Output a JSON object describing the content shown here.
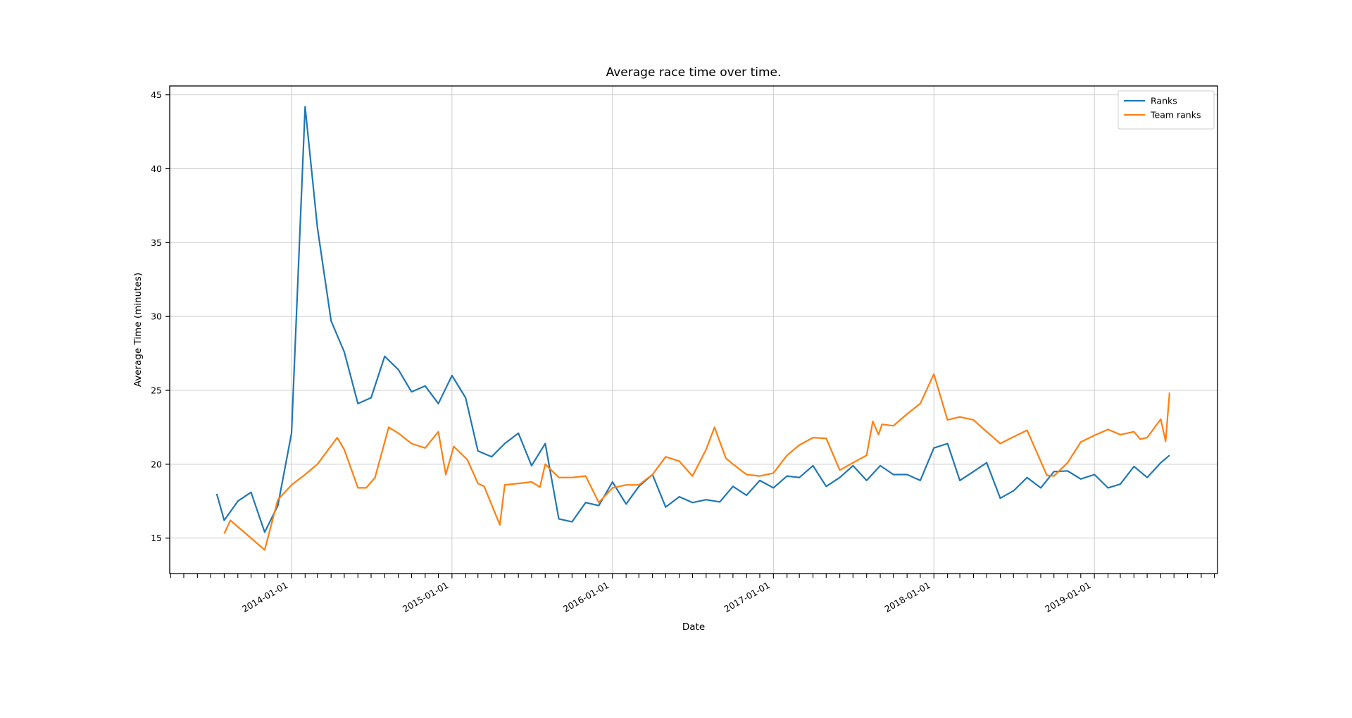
{
  "title": "Average race time over time.",
  "axes": {
    "xlabel": "Date",
    "ylabel": "Average Time (minutes)",
    "x_tick_labels": [
      "2014-01-01",
      "2015-01-01",
      "2016-01-01",
      "2017-01-01",
      "2018-01-01",
      "2019-01-01"
    ],
    "y_tick_labels": [
      15,
      20,
      25,
      30,
      35,
      40,
      45
    ],
    "xlim": [
      "2013-03-30",
      "2019-10-08"
    ],
    "ylim": [
      12.6,
      45.6
    ],
    "grid": true
  },
  "legend": {
    "position": "upper-right",
    "entries": [
      {
        "label": "Ranks",
        "color": "#1f77b4"
      },
      {
        "label": "Team ranks",
        "color": "#ff7f0e"
      }
    ]
  },
  "colors": {
    "grid": "#cccccc",
    "spine": "#000000",
    "tick_text": "#000000"
  },
  "chart_data": {
    "type": "line",
    "title": "Average race time over time.",
    "xlabel": "Date",
    "ylabel": "Average Time (minutes)",
    "ylim": [
      12.6,
      45.6
    ],
    "xlim": [
      "2013-03-30",
      "2019-10-08"
    ],
    "legend_position": "upper-right",
    "grid": true,
    "series": [
      {
        "name": "Ranks",
        "color": "#1f77b4",
        "points": [
          [
            "2013-07-15",
            18.0
          ],
          [
            "2013-08-01",
            16.2
          ],
          [
            "2013-09-01",
            17.5
          ],
          [
            "2013-10-01",
            18.1
          ],
          [
            "2013-11-01",
            15.4
          ],
          [
            "2013-12-01",
            17.2
          ],
          [
            "2014-01-01",
            22.1
          ],
          [
            "2014-02-01",
            44.2
          ],
          [
            "2014-03-01",
            36.0
          ],
          [
            "2014-04-01",
            29.7
          ],
          [
            "2014-05-01",
            27.6
          ],
          [
            "2014-06-01",
            24.1
          ],
          [
            "2014-07-01",
            24.5
          ],
          [
            "2014-08-01",
            27.3
          ],
          [
            "2014-09-01",
            26.4
          ],
          [
            "2014-10-01",
            24.9
          ],
          [
            "2014-11-01",
            25.3
          ],
          [
            "2014-12-01",
            24.1
          ],
          [
            "2015-01-01",
            26.0
          ],
          [
            "2015-02-01",
            24.5
          ],
          [
            "2015-03-01",
            20.9
          ],
          [
            "2015-04-01",
            20.5
          ],
          [
            "2015-05-01",
            21.4
          ],
          [
            "2015-06-01",
            22.1
          ],
          [
            "2015-07-01",
            19.9
          ],
          [
            "2015-08-01",
            21.4
          ],
          [
            "2015-09-01",
            16.3
          ],
          [
            "2015-10-01",
            16.1
          ],
          [
            "2015-11-01",
            17.4
          ],
          [
            "2015-12-01",
            17.2
          ],
          [
            "2016-01-01",
            18.8
          ],
          [
            "2016-02-01",
            17.3
          ],
          [
            "2016-03-01",
            18.5
          ],
          [
            "2016-04-01",
            19.3
          ],
          [
            "2016-05-01",
            17.1
          ],
          [
            "2016-06-01",
            17.8
          ],
          [
            "2016-07-01",
            17.4
          ],
          [
            "2016-08-01",
            17.6
          ],
          [
            "2016-09-01",
            17.45
          ],
          [
            "2016-10-01",
            18.5
          ],
          [
            "2016-11-01",
            17.9
          ],
          [
            "2016-12-01",
            18.9
          ],
          [
            "2017-01-01",
            18.4
          ],
          [
            "2017-02-01",
            19.2
          ],
          [
            "2017-03-01",
            19.1
          ],
          [
            "2017-04-01",
            19.9
          ],
          [
            "2017-05-01",
            18.5
          ],
          [
            "2017-06-01",
            19.1
          ],
          [
            "2017-07-01",
            19.9
          ],
          [
            "2017-08-01",
            18.9
          ],
          [
            "2017-09-01",
            19.9
          ],
          [
            "2017-10-01",
            19.3
          ],
          [
            "2017-11-01",
            19.3
          ],
          [
            "2017-12-01",
            18.9
          ],
          [
            "2018-01-01",
            21.1
          ],
          [
            "2018-02-01",
            21.4
          ],
          [
            "2018-03-01",
            18.9
          ],
          [
            "2018-04-01",
            19.5
          ],
          [
            "2018-05-01",
            20.1
          ],
          [
            "2018-06-01",
            17.7
          ],
          [
            "2018-07-01",
            18.2
          ],
          [
            "2018-08-01",
            19.1
          ],
          [
            "2018-09-01",
            18.4
          ],
          [
            "2018-10-01",
            19.5
          ],
          [
            "2018-11-01",
            19.55
          ],
          [
            "2018-12-01",
            19.0
          ],
          [
            "2019-01-01",
            19.3
          ],
          [
            "2019-02-01",
            18.4
          ],
          [
            "2019-03-01",
            18.65
          ],
          [
            "2019-04-01",
            19.85
          ],
          [
            "2019-05-01",
            19.1
          ],
          [
            "2019-06-01",
            20.1
          ],
          [
            "2019-06-21",
            20.6
          ]
        ]
      },
      {
        "name": "Team ranks",
        "color": "#ff7f0e",
        "points": [
          [
            "2013-08-01",
            15.3
          ],
          [
            "2013-08-15",
            16.2
          ],
          [
            "2013-11-01",
            14.2
          ],
          [
            "2013-12-01",
            17.6
          ],
          [
            "2014-01-01",
            18.6
          ],
          [
            "2014-02-01",
            19.3
          ],
          [
            "2014-03-01",
            20.0
          ],
          [
            "2014-04-15",
            21.8
          ],
          [
            "2014-05-01",
            21.0
          ],
          [
            "2014-06-01",
            18.4
          ],
          [
            "2014-06-20",
            18.4
          ],
          [
            "2014-07-10",
            19.1
          ],
          [
            "2014-08-10",
            22.5
          ],
          [
            "2014-09-01",
            22.1
          ],
          [
            "2014-10-01",
            21.4
          ],
          [
            "2014-11-01",
            21.1
          ],
          [
            "2014-12-01",
            22.2
          ],
          [
            "2014-12-18",
            19.3
          ],
          [
            "2015-01-05",
            21.2
          ],
          [
            "2015-02-05",
            20.3
          ],
          [
            "2015-03-01",
            18.7
          ],
          [
            "2015-03-15",
            18.5
          ],
          [
            "2015-04-20",
            15.9
          ],
          [
            "2015-05-01",
            18.6
          ],
          [
            "2015-06-01",
            18.7
          ],
          [
            "2015-07-01",
            18.8
          ],
          [
            "2015-07-20",
            18.45
          ],
          [
            "2015-08-01",
            20.0
          ],
          [
            "2015-09-01",
            19.1
          ],
          [
            "2015-10-01",
            19.1
          ],
          [
            "2015-11-01",
            19.2
          ],
          [
            "2015-12-01",
            17.4
          ],
          [
            "2016-01-01",
            18.4
          ],
          [
            "2016-02-01",
            18.6
          ],
          [
            "2016-03-01",
            18.6
          ],
          [
            "2016-04-01",
            19.3
          ],
          [
            "2016-05-01",
            20.5
          ],
          [
            "2016-06-01",
            20.2
          ],
          [
            "2016-07-01",
            19.2
          ],
          [
            "2016-08-01",
            21.0
          ],
          [
            "2016-08-20",
            22.5
          ],
          [
            "2016-09-15",
            20.4
          ],
          [
            "2016-10-01",
            20.0
          ],
          [
            "2016-11-01",
            19.3
          ],
          [
            "2016-12-01",
            19.2
          ],
          [
            "2017-01-01",
            19.4
          ],
          [
            "2017-02-01",
            20.6
          ],
          [
            "2017-03-01",
            21.3
          ],
          [
            "2017-04-01",
            21.8
          ],
          [
            "2017-05-01",
            21.75
          ],
          [
            "2017-06-01",
            19.6
          ],
          [
            "2017-07-01",
            20.1
          ],
          [
            "2017-08-01",
            20.6
          ],
          [
            "2017-08-15",
            22.9
          ],
          [
            "2017-08-28",
            22.0
          ],
          [
            "2017-09-05",
            22.7
          ],
          [
            "2017-10-01",
            22.6
          ],
          [
            "2017-11-01",
            23.4
          ],
          [
            "2017-12-01",
            24.1
          ],
          [
            "2018-01-01",
            26.1
          ],
          [
            "2018-02-01",
            23.0
          ],
          [
            "2018-03-01",
            23.2
          ],
          [
            "2018-04-01",
            23.0
          ],
          [
            "2018-05-01",
            22.2
          ],
          [
            "2018-06-01",
            21.4
          ],
          [
            "2018-07-01",
            21.85
          ],
          [
            "2018-08-01",
            22.3
          ],
          [
            "2018-09-15",
            19.25
          ],
          [
            "2018-10-01",
            19.2
          ],
          [
            "2018-11-01",
            20.1
          ],
          [
            "2018-12-01",
            21.5
          ],
          [
            "2019-01-01",
            21.95
          ],
          [
            "2019-02-01",
            22.35
          ],
          [
            "2019-03-01",
            22.0
          ],
          [
            "2019-04-01",
            22.2
          ],
          [
            "2019-04-15",
            21.7
          ],
          [
            "2019-05-01",
            21.8
          ],
          [
            "2019-06-01",
            23.05
          ],
          [
            "2019-06-12",
            21.55
          ],
          [
            "2019-06-21",
            24.85
          ]
        ]
      }
    ]
  }
}
